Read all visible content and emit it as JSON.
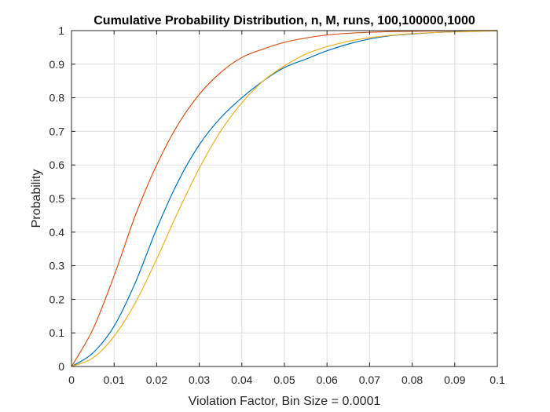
{
  "chart_data": {
    "type": "line",
    "title": "Cumulative Probability Distribution, n, M, runs, 100,100000,1000",
    "xlabel": "Violation Factor, Bin Size = 0.0001",
    "ylabel": "Probability",
    "xlim": [
      0,
      0.1
    ],
    "ylim": [
      0,
      1
    ],
    "xticks": [
      0,
      0.01,
      0.02,
      0.03,
      0.04,
      0.05,
      0.06,
      0.07,
      0.08,
      0.09,
      0.1
    ],
    "xtick_labels": [
      "0",
      "0.01",
      "0.02",
      "0.03",
      "0.04",
      "0.05",
      "0.06",
      "0.07",
      "0.08",
      "0.09",
      "0.1"
    ],
    "yticks": [
      0,
      0.1,
      0.2,
      0.3,
      0.4,
      0.5,
      0.6,
      0.7,
      0.8,
      0.9,
      1
    ],
    "ytick_labels": [
      "0",
      "0.1",
      "0.2",
      "0.3",
      "0.4",
      "0.5",
      "0.6",
      "0.7",
      "0.8",
      "0.9",
      "1"
    ],
    "grid": true,
    "legend": "none",
    "series": [
      {
        "color": "#0072BD",
        "x": [
          0,
          0.005,
          0.01,
          0.015,
          0.02,
          0.025,
          0.03,
          0.035,
          0.04,
          0.045,
          0.05,
          0.055,
          0.06,
          0.065,
          0.07,
          0.075,
          0.08,
          0.085,
          0.09,
          0.095,
          0.1
        ],
        "y": [
          0,
          0.04,
          0.12,
          0.25,
          0.41,
          0.55,
          0.66,
          0.74,
          0.8,
          0.85,
          0.89,
          0.915,
          0.94,
          0.96,
          0.975,
          0.985,
          0.99,
          0.994,
          0.997,
          0.999,
          1.0
        ]
      },
      {
        "color": "#D95319",
        "x": [
          0,
          0.005,
          0.01,
          0.015,
          0.02,
          0.025,
          0.03,
          0.035,
          0.04,
          0.045,
          0.05,
          0.055,
          0.06,
          0.065,
          0.07,
          0.075,
          0.08,
          0.085,
          0.09,
          0.095,
          0.1
        ],
        "y": [
          0,
          0.11,
          0.27,
          0.45,
          0.6,
          0.72,
          0.81,
          0.875,
          0.92,
          0.945,
          0.965,
          0.978,
          0.987,
          0.992,
          0.995,
          0.997,
          0.998,
          0.999,
          0.9995,
          1.0,
          1.0
        ]
      },
      {
        "color": "#EDB120",
        "x": [
          0,
          0.005,
          0.01,
          0.015,
          0.02,
          0.025,
          0.03,
          0.035,
          0.04,
          0.045,
          0.05,
          0.055,
          0.06,
          0.065,
          0.07,
          0.075,
          0.08,
          0.085,
          0.09,
          0.095,
          0.1
        ],
        "y": [
          0,
          0.025,
          0.09,
          0.19,
          0.32,
          0.46,
          0.59,
          0.7,
          0.785,
          0.85,
          0.895,
          0.93,
          0.952,
          0.968,
          0.979,
          0.986,
          0.991,
          0.994,
          0.996,
          0.998,
          0.999
        ]
      }
    ]
  }
}
